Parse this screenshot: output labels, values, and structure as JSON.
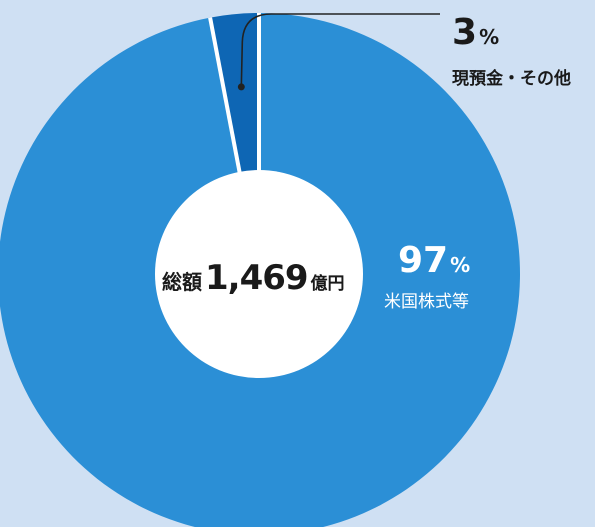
{
  "chart_data": {
    "type": "pie",
    "donut": true,
    "slices": [
      {
        "label": "米国株式等",
        "value": 97,
        "value_text": "97",
        "unit": "%",
        "color": "#2b8fd6"
      },
      {
        "label": "現預金・その他",
        "value": 3,
        "value_text": "3",
        "unit": "%",
        "color": "#0e66b4"
      }
    ],
    "center": {
      "prefix": "総額",
      "value": "1,469",
      "suffix": "億円"
    },
    "divider_color": "#ffffff",
    "hole_color": "#ffffff"
  },
  "colors": {
    "background": "#cfe0f3",
    "leader_line": "#222222",
    "dark_text": "#1a1a1a",
    "light_text": "#ffffff"
  }
}
